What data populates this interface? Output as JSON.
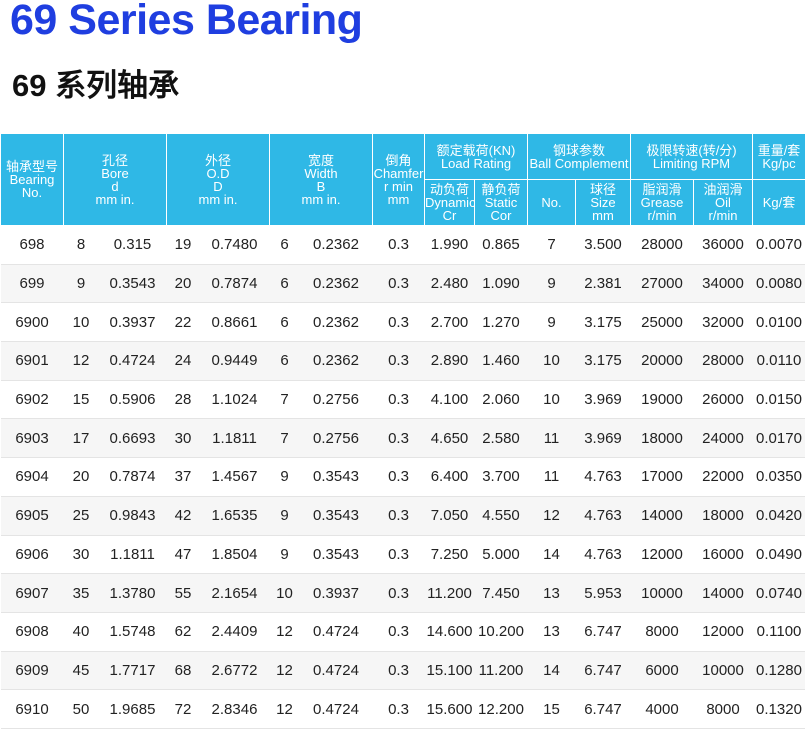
{
  "header": {
    "title": "69 Series Bearing",
    "subtitle": "69 系列轴承"
  },
  "table": {
    "columns": {
      "bearing": [
        "轴承型号",
        "Bearing",
        "No."
      ],
      "bore": [
        "孔径",
        "Bore",
        "d",
        "mm in."
      ],
      "od": [
        "外径",
        "O.D",
        "D",
        "mm in."
      ],
      "width": [
        "宽度",
        "Width",
        "B",
        "mm in."
      ],
      "chamfer": [
        "倒角",
        "Chamfer",
        "r  min",
        "mm"
      ],
      "load_rating": [
        "额定载荷(KN)",
        "Load Rating"
      ],
      "ball_complement": [
        "钢球参数",
        "Ball Complement"
      ],
      "limiting_rpm": [
        "极限转速(转/分)",
        "Limiting RPM"
      ],
      "weight": [
        "重量/套",
        "Kg/pc"
      ],
      "dynamic": [
        "动负荷",
        "Dynamic",
        "Cr"
      ],
      "static": [
        "静负荷",
        "Static",
        "Cor"
      ],
      "ball_no": [
        "No."
      ],
      "ball_size": [
        "球径",
        "Size",
        "mm"
      ],
      "grease": [
        "脂润滑",
        "Grease",
        "r/min"
      ],
      "oil": [
        "油润滑",
        "Oil",
        "r/min"
      ],
      "weight_unit": [
        "Kg/套"
      ]
    },
    "rows": [
      [
        "698",
        "8",
        "0.315",
        "19",
        "0.7480",
        "6",
        "0.2362",
        "0.3",
        "1.990",
        "0.865",
        "7",
        "3.500",
        "28000",
        "36000",
        "0.0070"
      ],
      [
        "699",
        "9",
        "0.3543",
        "20",
        "0.7874",
        "6",
        "0.2362",
        "0.3",
        "2.480",
        "1.090",
        "9",
        "2.381",
        "27000",
        "34000",
        "0.0080"
      ],
      [
        "6900",
        "10",
        "0.3937",
        "22",
        "0.8661",
        "6",
        "0.2362",
        "0.3",
        "2.700",
        "1.270",
        "9",
        "3.175",
        "25000",
        "32000",
        "0.0100"
      ],
      [
        "6901",
        "12",
        "0.4724",
        "24",
        "0.9449",
        "6",
        "0.2362",
        "0.3",
        "2.890",
        "1.460",
        "10",
        "3.175",
        "20000",
        "28000",
        "0.0110"
      ],
      [
        "6902",
        "15",
        "0.5906",
        "28",
        "1.1024",
        "7",
        "0.2756",
        "0.3",
        "4.100",
        "2.060",
        "10",
        "3.969",
        "19000",
        "26000",
        "0.0150"
      ],
      [
        "6903",
        "17",
        "0.6693",
        "30",
        "1.1811",
        "7",
        "0.2756",
        "0.3",
        "4.650",
        "2.580",
        "11",
        "3.969",
        "18000",
        "24000",
        "0.0170"
      ],
      [
        "6904",
        "20",
        "0.7874",
        "37",
        "1.4567",
        "9",
        "0.3543",
        "0.3",
        "6.400",
        "3.700",
        "11",
        "4.763",
        "17000",
        "22000",
        "0.0350"
      ],
      [
        "6905",
        "25",
        "0.9843",
        "42",
        "1.6535",
        "9",
        "0.3543",
        "0.3",
        "7.050",
        "4.550",
        "12",
        "4.763",
        "14000",
        "18000",
        "0.0420"
      ],
      [
        "6906",
        "30",
        "1.1811",
        "47",
        "1.8504",
        "9",
        "0.3543",
        "0.3",
        "7.250",
        "5.000",
        "14",
        "4.763",
        "12000",
        "16000",
        "0.0490"
      ],
      [
        "6907",
        "35",
        "1.3780",
        "55",
        "2.1654",
        "10",
        "0.3937",
        "0.3",
        "11.200",
        "7.450",
        "13",
        "5.953",
        "10000",
        "14000",
        "0.0740"
      ],
      [
        "6908",
        "40",
        "1.5748",
        "62",
        "2.4409",
        "12",
        "0.4724",
        "0.3",
        "14.600",
        "10.200",
        "13",
        "6.747",
        "8000",
        "12000",
        "0.1100"
      ],
      [
        "6909",
        "45",
        "1.7717",
        "68",
        "2.6772",
        "12",
        "0.4724",
        "0.3",
        "15.100",
        "11.200",
        "14",
        "6.747",
        "6000",
        "10000",
        "0.1280"
      ],
      [
        "6910",
        "50",
        "1.9685",
        "72",
        "2.8346",
        "12",
        "0.4724",
        "0.3",
        "15.600",
        "12.200",
        "15",
        "6.747",
        "4000",
        "8000",
        "0.1320"
      ]
    ]
  }
}
